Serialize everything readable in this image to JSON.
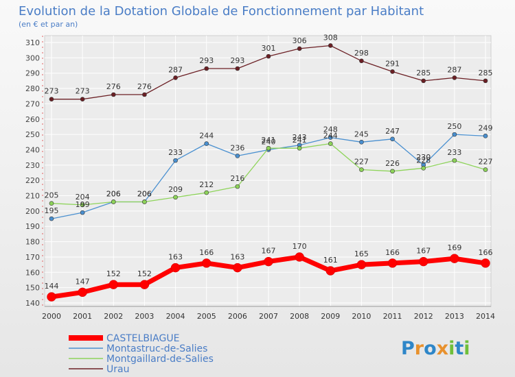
{
  "chart_data": {
    "type": "line",
    "title": "Evolution de la Dotation Globale de Fonctionnement par Habitant",
    "subtitle": "(en € et par an)",
    "x": [
      2000,
      2001,
      2002,
      2003,
      2004,
      2005,
      2006,
      2007,
      2008,
      2009,
      2010,
      2011,
      2012,
      2013,
      2014
    ],
    "ylim": [
      140,
      310
    ],
    "yticks": [
      140,
      150,
      160,
      170,
      180,
      190,
      200,
      210,
      220,
      230,
      240,
      250,
      260,
      270,
      280,
      290,
      300,
      310
    ],
    "grid": true,
    "legend_position": "bottom-left",
    "series": [
      {
        "name": "CASTELBIAGUE",
        "color": "#ff0000",
        "highlight": true,
        "values": [
          144,
          147,
          152,
          152,
          163,
          166,
          163,
          167,
          170,
          161,
          165,
          166,
          167,
          169,
          166
        ]
      },
      {
        "name": "Montastruc-de-Salies",
        "color": "#4a90d0",
        "values": [
          195,
          199,
          206,
          206,
          233,
          244,
          236,
          240,
          243,
          248,
          245,
          247,
          230,
          250,
          249
        ]
      },
      {
        "name": "Montgaillard-de-Salies",
        "color": "#8ed45a",
        "values": [
          205,
          204,
          206,
          206,
          209,
          212,
          216,
          241,
          241,
          244,
          227,
          226,
          228,
          233,
          227
        ]
      },
      {
        "name": "Urau",
        "color": "#6b1f24",
        "values": [
          273,
          273,
          276,
          276,
          287,
          293,
          293,
          301,
          306,
          308,
          298,
          291,
          285,
          287,
          285
        ]
      }
    ]
  },
  "logo": {
    "text": "Proxiti"
  }
}
